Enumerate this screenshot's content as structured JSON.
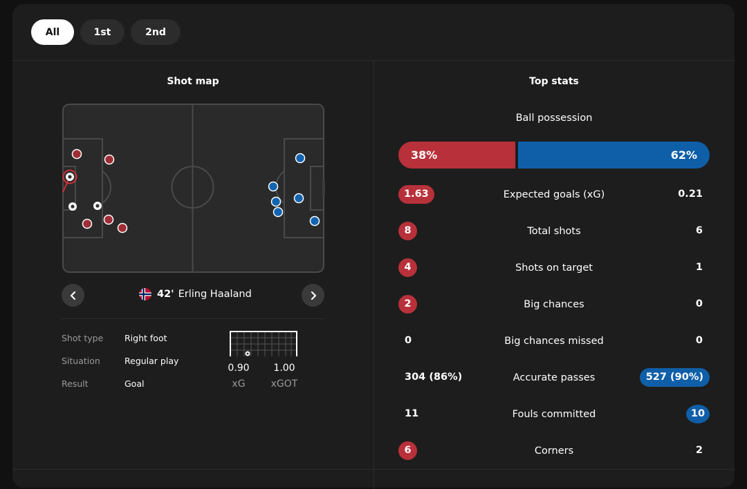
{
  "tabs": [
    {
      "label": "All",
      "active": true
    },
    {
      "label": "1st",
      "active": false
    },
    {
      "label": "2nd",
      "active": false
    }
  ],
  "shot_map": {
    "title": "Shot map",
    "player": {
      "minute": "42'",
      "name": "Erling Haaland",
      "flag": "norway-flag-icon"
    },
    "details": [
      {
        "label": "Shot type",
        "value": "Right foot"
      },
      {
        "label": "Situation",
        "value": "Regular play"
      },
      {
        "label": "Result",
        "value": "Goal"
      }
    ],
    "xg": {
      "value": "0.90",
      "label": "xG"
    },
    "xgot": {
      "value": "1.00",
      "label": "xGOT"
    }
  },
  "top_stats": {
    "title": "Top stats",
    "possession": {
      "label": "Ball possession",
      "home": "38%",
      "away": "62%",
      "home_share": 0.38
    },
    "rows": [
      {
        "label": "Expected goals (xG)",
        "home": "1.63",
        "away": "0.21",
        "highlight": "home"
      },
      {
        "label": "Total shots",
        "home": "8",
        "away": "6",
        "highlight": "home"
      },
      {
        "label": "Shots on target",
        "home": "4",
        "away": "1",
        "highlight": "home"
      },
      {
        "label": "Big chances",
        "home": "2",
        "away": "0",
        "highlight": "home"
      },
      {
        "label": "Big chances missed",
        "home": "0",
        "away": "0",
        "highlight": "none"
      },
      {
        "label": "Accurate passes",
        "home": "304 (86%)",
        "away": "527 (90%)",
        "highlight": "away"
      },
      {
        "label": "Fouls committed",
        "home": "11",
        "away": "10",
        "highlight": "away"
      },
      {
        "label": "Corners",
        "home": "6",
        "away": "2",
        "highlight": "home"
      }
    ]
  },
  "colors": {
    "home": "#b8313a",
    "away": "#0f5fa8",
    "background": "#1d1d1d"
  }
}
